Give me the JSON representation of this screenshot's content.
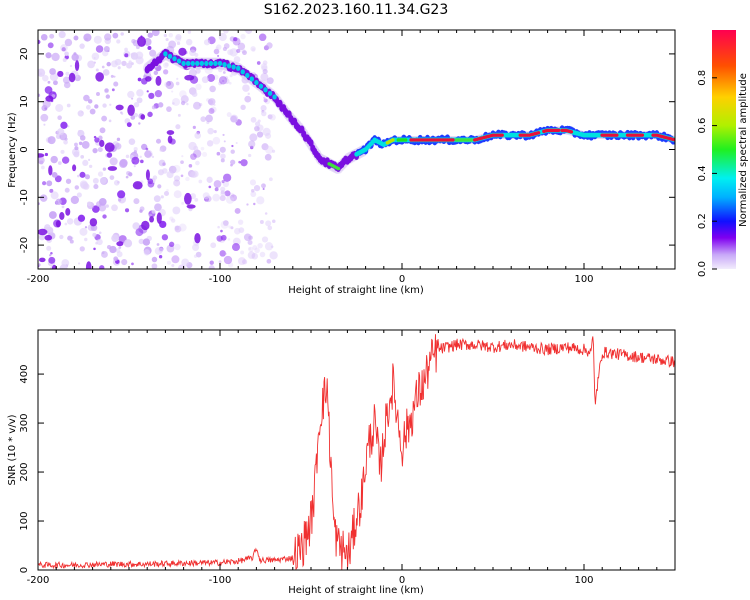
{
  "title": "S162.2023.160.11.34.G23",
  "colors": {
    "snr_line": "#f03030",
    "spectrum_low": "#d8c8f4",
    "spectrum_mid": "#7a10e0",
    "spectrum_high": "#e8103a"
  },
  "chart_data": [
    {
      "type": "heatmap",
      "xlabel": "Height of straight line (km)",
      "ylabel": "Frequency (Hz)",
      "xlim": [
        -200,
        150
      ],
      "ylim": [
        -25,
        25
      ],
      "xticks": [
        -200,
        -100,
        0,
        100
      ],
      "yticks": [
        -20,
        -10,
        0,
        10,
        20
      ],
      "colorbar": {
        "label": "Normalized spectral amplitude",
        "range": [
          0,
          1
        ],
        "ticks": [
          "0.0",
          "0.2",
          "0.4",
          "0.6",
          "0.8"
        ],
        "colormap": "hsv-reversed (purple to red)"
      },
      "ridge": {
        "x": [
          -140,
          -130,
          -120,
          -110,
          -100,
          -90,
          -80,
          -70,
          -62,
          -55,
          -50,
          -45,
          -40,
          -35,
          -30,
          -25,
          -20,
          -15,
          -10,
          -5,
          0,
          10,
          20,
          30,
          40,
          50,
          60,
          70,
          80,
          90,
          100,
          110,
          120,
          130,
          140,
          150
        ],
        "y": [
          17,
          20,
          18,
          18,
          18,
          17,
          14,
          11,
          7,
          4,
          1,
          -2,
          -3,
          -4,
          -2,
          -1,
          0,
          2,
          1,
          2,
          2,
          2,
          2,
          2,
          2,
          3,
          3,
          3,
          4,
          4,
          3,
          3,
          3,
          3,
          3,
          2
        ]
      },
      "grid": false
    },
    {
      "type": "line",
      "xlabel": "Height of straight line (km)",
      "ylabel": "SNR (10 * v/v)",
      "xlim": [
        -200,
        150
      ],
      "ylim": [
        0,
        490
      ],
      "xticks": [
        -200,
        -100,
        0,
        100
      ],
      "yticks": [
        0,
        100,
        200,
        300,
        400
      ],
      "series": [
        {
          "x": [
            -200,
            -180,
            -160,
            -140,
            -120,
            -100,
            -90,
            -82,
            -80,
            -78,
            -70,
            -60,
            -55,
            -50,
            -48,
            -46,
            -44,
            -42,
            -41,
            -40,
            -39,
            -38,
            -37,
            -35,
            -32,
            -30,
            -28,
            -25,
            -22,
            -20,
            -18,
            -15,
            -12,
            -10,
            -8,
            -5,
            -2,
            0,
            2,
            5,
            8,
            10,
            12,
            15,
            18,
            20,
            25,
            30,
            40,
            50,
            60,
            70,
            80,
            90,
            100,
            104,
            105,
            106,
            110,
            120,
            130,
            140,
            150
          ],
          "y": [
            10,
            10,
            12,
            12,
            14,
            15,
            18,
            25,
            45,
            20,
            20,
            25,
            45,
            100,
            160,
            280,
            340,
            360,
            380,
            280,
            220,
            120,
            80,
            50,
            40,
            30,
            50,
            110,
            150,
            220,
            260,
            300,
            200,
            270,
            320,
            380,
            300,
            250,
            280,
            310,
            350,
            370,
            380,
            420,
            440,
            450,
            455,
            460,
            460,
            455,
            460,
            455,
            450,
            455,
            450,
            445,
            480,
            340,
            445,
            440,
            435,
            430,
            425
          ],
          "noise": 25
        }
      ],
      "grid": false
    }
  ]
}
